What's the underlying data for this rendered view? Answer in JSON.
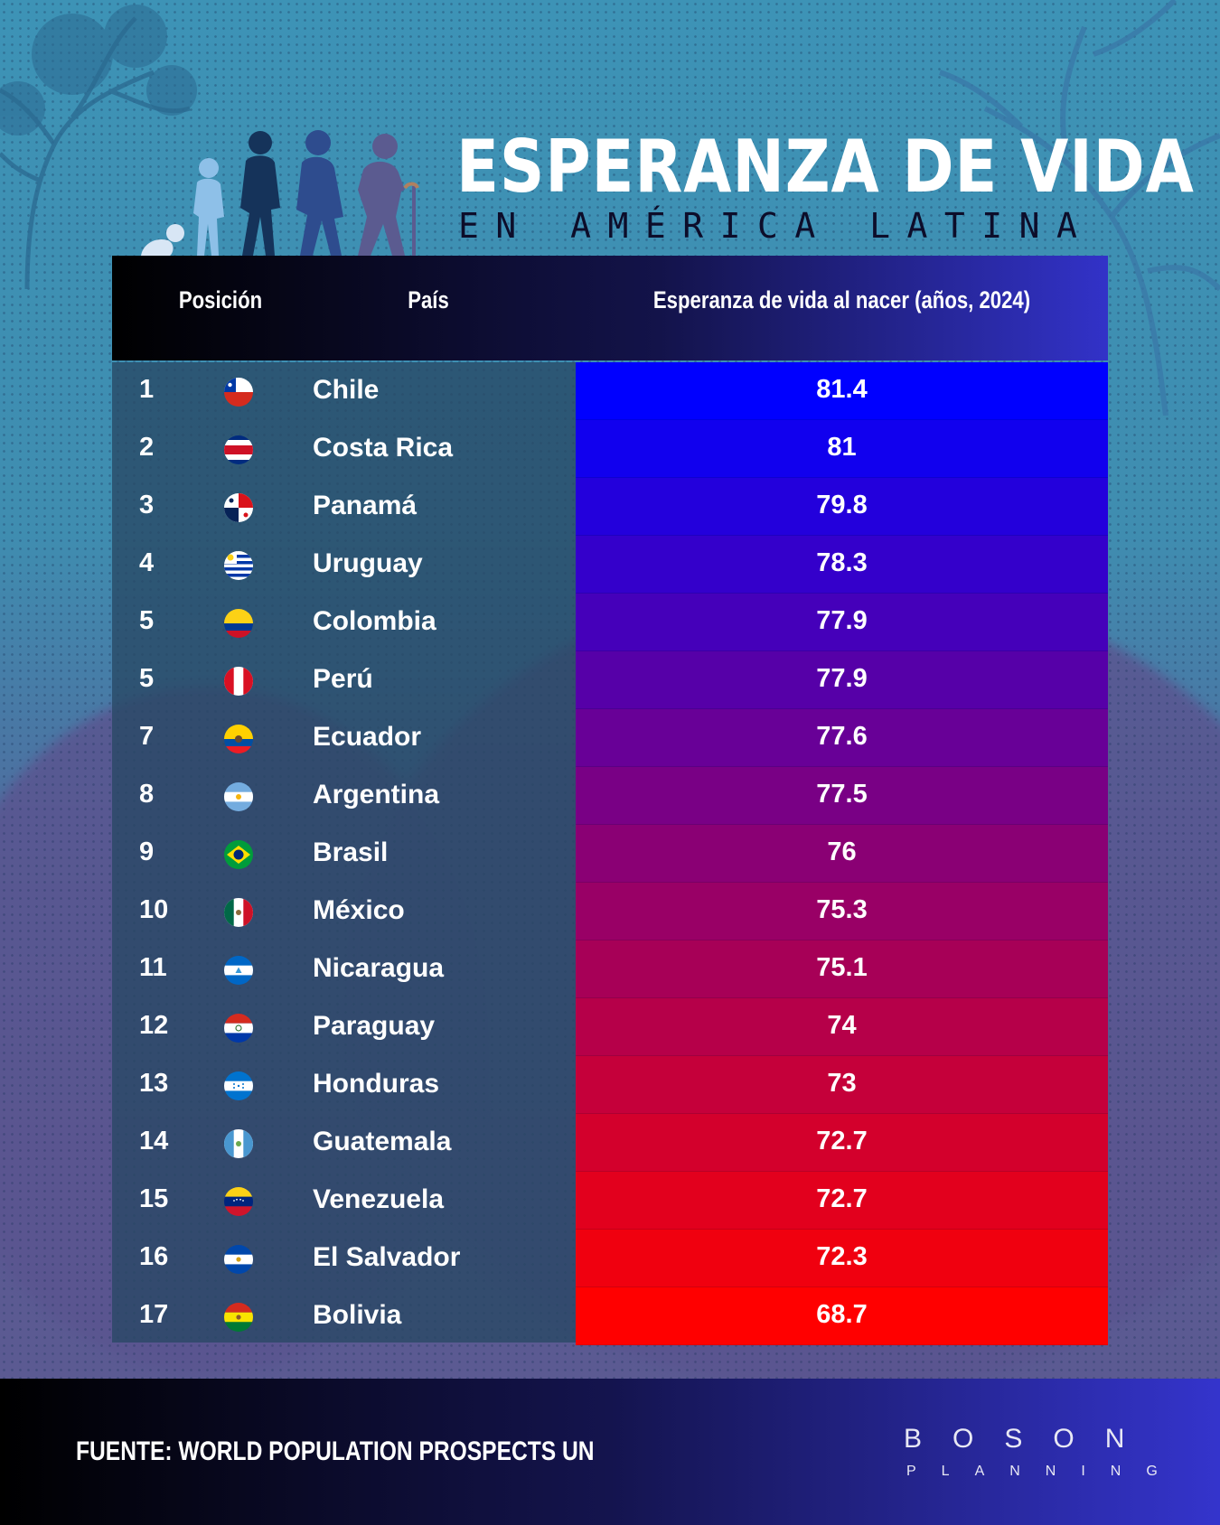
{
  "title": "ESPERANZA DE VIDA",
  "subtitle": "EN AMÉRICA LATINA",
  "headers": {
    "rank": "Posición",
    "country": "País",
    "value": "Esperanza de vida al nacer (años, 2024)"
  },
  "rows": [
    {
      "rank": "1",
      "country": "Chile",
      "value": "81.4",
      "flag": "chile-flag-icon"
    },
    {
      "rank": "2",
      "country": "Costa Rica",
      "value": "81",
      "flag": "costa-rica-flag-icon"
    },
    {
      "rank": "3",
      "country": "Panamá",
      "value": "79.8",
      "flag": "panama-flag-icon"
    },
    {
      "rank": "4",
      "country": "Uruguay",
      "value": "78.3",
      "flag": "uruguay-flag-icon"
    },
    {
      "rank": "5",
      "country": "Colombia",
      "value": "77.9",
      "flag": "colombia-flag-icon"
    },
    {
      "rank": "5",
      "country": "Perú",
      "value": "77.9",
      "flag": "peru-flag-icon"
    },
    {
      "rank": "7",
      "country": "Ecuador",
      "value": "77.6",
      "flag": "ecuador-flag-icon"
    },
    {
      "rank": "8",
      "country": "Argentina",
      "value": "77.5",
      "flag": "argentina-flag-icon"
    },
    {
      "rank": "9",
      "country": "Brasil",
      "value": "76",
      "flag": "brazil-flag-icon"
    },
    {
      "rank": "10",
      "country": "México",
      "value": "75.3",
      "flag": "mexico-flag-icon"
    },
    {
      "rank": "11",
      "country": "Nicaragua",
      "value": "75.1",
      "flag": "nicaragua-flag-icon"
    },
    {
      "rank": "12",
      "country": "Paraguay",
      "value": "74",
      "flag": "paraguay-flag-icon"
    },
    {
      "rank": "13",
      "country": "Honduras",
      "value": "73",
      "flag": "honduras-flag-icon"
    },
    {
      "rank": "14",
      "country": "Guatemala",
      "value": "72.7",
      "flag": "guatemala-flag-icon"
    },
    {
      "rank": "15",
      "country": "Venezuela",
      "value": "72.7",
      "flag": "venezuela-flag-icon"
    },
    {
      "rank": "16",
      "country": "El Salvador",
      "value": "72.3",
      "flag": "el-salvador-flag-icon"
    },
    {
      "rank": "17",
      "country": "Bolivia",
      "value": "68.7",
      "flag": "bolivia-flag-icon"
    }
  ],
  "colors": {
    "scale_top": "#0000ff",
    "scale_mid": "#8a0074",
    "scale_bottom": "#ff0000"
  },
  "chart_data": {
    "type": "table",
    "title": "ESPERANZA DE VIDA",
    "subtitle": "EN AMÉRICA LATINA",
    "columns": [
      "Posición",
      "País",
      "Esperanza de vida al nacer (años, 2024)"
    ],
    "categories": [
      "Chile",
      "Costa Rica",
      "Panamá",
      "Uruguay",
      "Colombia",
      "Perú",
      "Ecuador",
      "Argentina",
      "Brasil",
      "México",
      "Nicaragua",
      "Paraguay",
      "Honduras",
      "Guatemala",
      "Venezuela",
      "El Salvador",
      "Bolivia"
    ],
    "values": [
      81.4,
      81,
      79.8,
      78.3,
      77.9,
      77.9,
      77.6,
      77.5,
      76,
      75.3,
      75.1,
      74,
      73,
      72.7,
      72.7,
      72.3,
      68.7
    ],
    "ranks": [
      1,
      2,
      3,
      4,
      5,
      5,
      7,
      8,
      9,
      10,
      11,
      12,
      13,
      14,
      15,
      16,
      17
    ]
  },
  "footer": {
    "source": "FUENTE: WORLD POPULATION PROSPECTS UN",
    "logo_main": "BOSON",
    "logo_sub": "PLANNING"
  }
}
